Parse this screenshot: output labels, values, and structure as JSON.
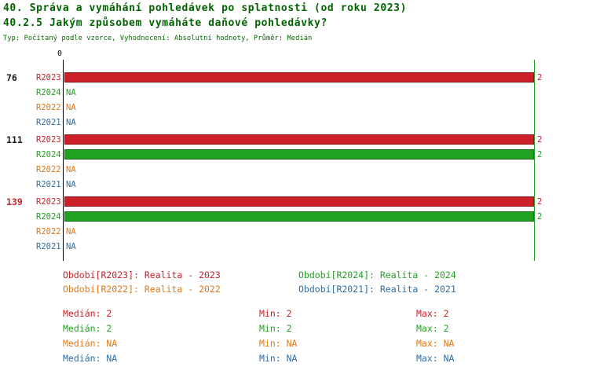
{
  "header": {
    "title": "40. Správa a vymáhání pohledávek po splatnosti (od roku 2023)",
    "subtitle": "40.2.5 Jakým způsobem vymáháte daňové pohledávky?",
    "meta": "Typ: Počítaný podle vzorce, Vyhodnocení: Absolutní hodnoty, Průměr: Medián"
  },
  "colors": {
    "title": "#006400",
    "series_R2023": "#CC2128",
    "series_R2024": "#21A121",
    "series_R2022": "#E17817",
    "series_R2021": "#2E6DA4",
    "axis": "#000000",
    "max_gridline": "#21A121"
  },
  "chart_data": {
    "type": "bar",
    "orientation": "horizontal",
    "title": "40.2.5 Jakým způsobem vymáháte daňové pohledávky?",
    "axis": {
      "origin_label": "0",
      "x_min": 0,
      "x_max": 2
    },
    "series_order": [
      "R2023",
      "R2024",
      "R2022",
      "R2021"
    ],
    "groups": [
      {
        "label": "76",
        "rows": [
          {
            "series": "R2023",
            "value": 2,
            "display": "2"
          },
          {
            "series": "R2024",
            "value": null,
            "display": "NA"
          },
          {
            "series": "R2022",
            "value": null,
            "display": "NA"
          },
          {
            "series": "R2021",
            "value": null,
            "display": "NA"
          }
        ]
      },
      {
        "label": "111",
        "rows": [
          {
            "series": "R2023",
            "value": 2,
            "display": "2"
          },
          {
            "series": "R2024",
            "value": 2,
            "display": "2"
          },
          {
            "series": "R2022",
            "value": null,
            "display": "NA"
          },
          {
            "series": "R2021",
            "value": null,
            "display": "NA"
          }
        ]
      },
      {
        "label": "139",
        "rows": [
          {
            "series": "R2023",
            "value": 2,
            "display": "2"
          },
          {
            "series": "R2024",
            "value": 2,
            "display": "2"
          },
          {
            "series": "R2022",
            "value": null,
            "display": "NA"
          },
          {
            "series": "R2021",
            "value": null,
            "display": "NA"
          }
        ]
      }
    ]
  },
  "legend": {
    "items": [
      {
        "label": "Období[R2023]: Realita - 2023"
      },
      {
        "label": "Období[R2024]: Realita - 2024"
      },
      {
        "label": "Období[R2022]: Realita - 2022"
      },
      {
        "label": "Období[R2021]: Realita - 2021"
      }
    ]
  },
  "stats": {
    "rows": [
      {
        "median": "Medián: 2",
        "min": "Min: 2",
        "max": "Max: 2"
      },
      {
        "median": "Medián: 2",
        "min": "Min: 2",
        "max": "Max: 2"
      },
      {
        "median": "Medián: NA",
        "min": "Min: NA",
        "max": "Max: NA"
      },
      {
        "median": "Medián: NA",
        "min": "Min: NA",
        "max": "Max: NA"
      }
    ]
  }
}
